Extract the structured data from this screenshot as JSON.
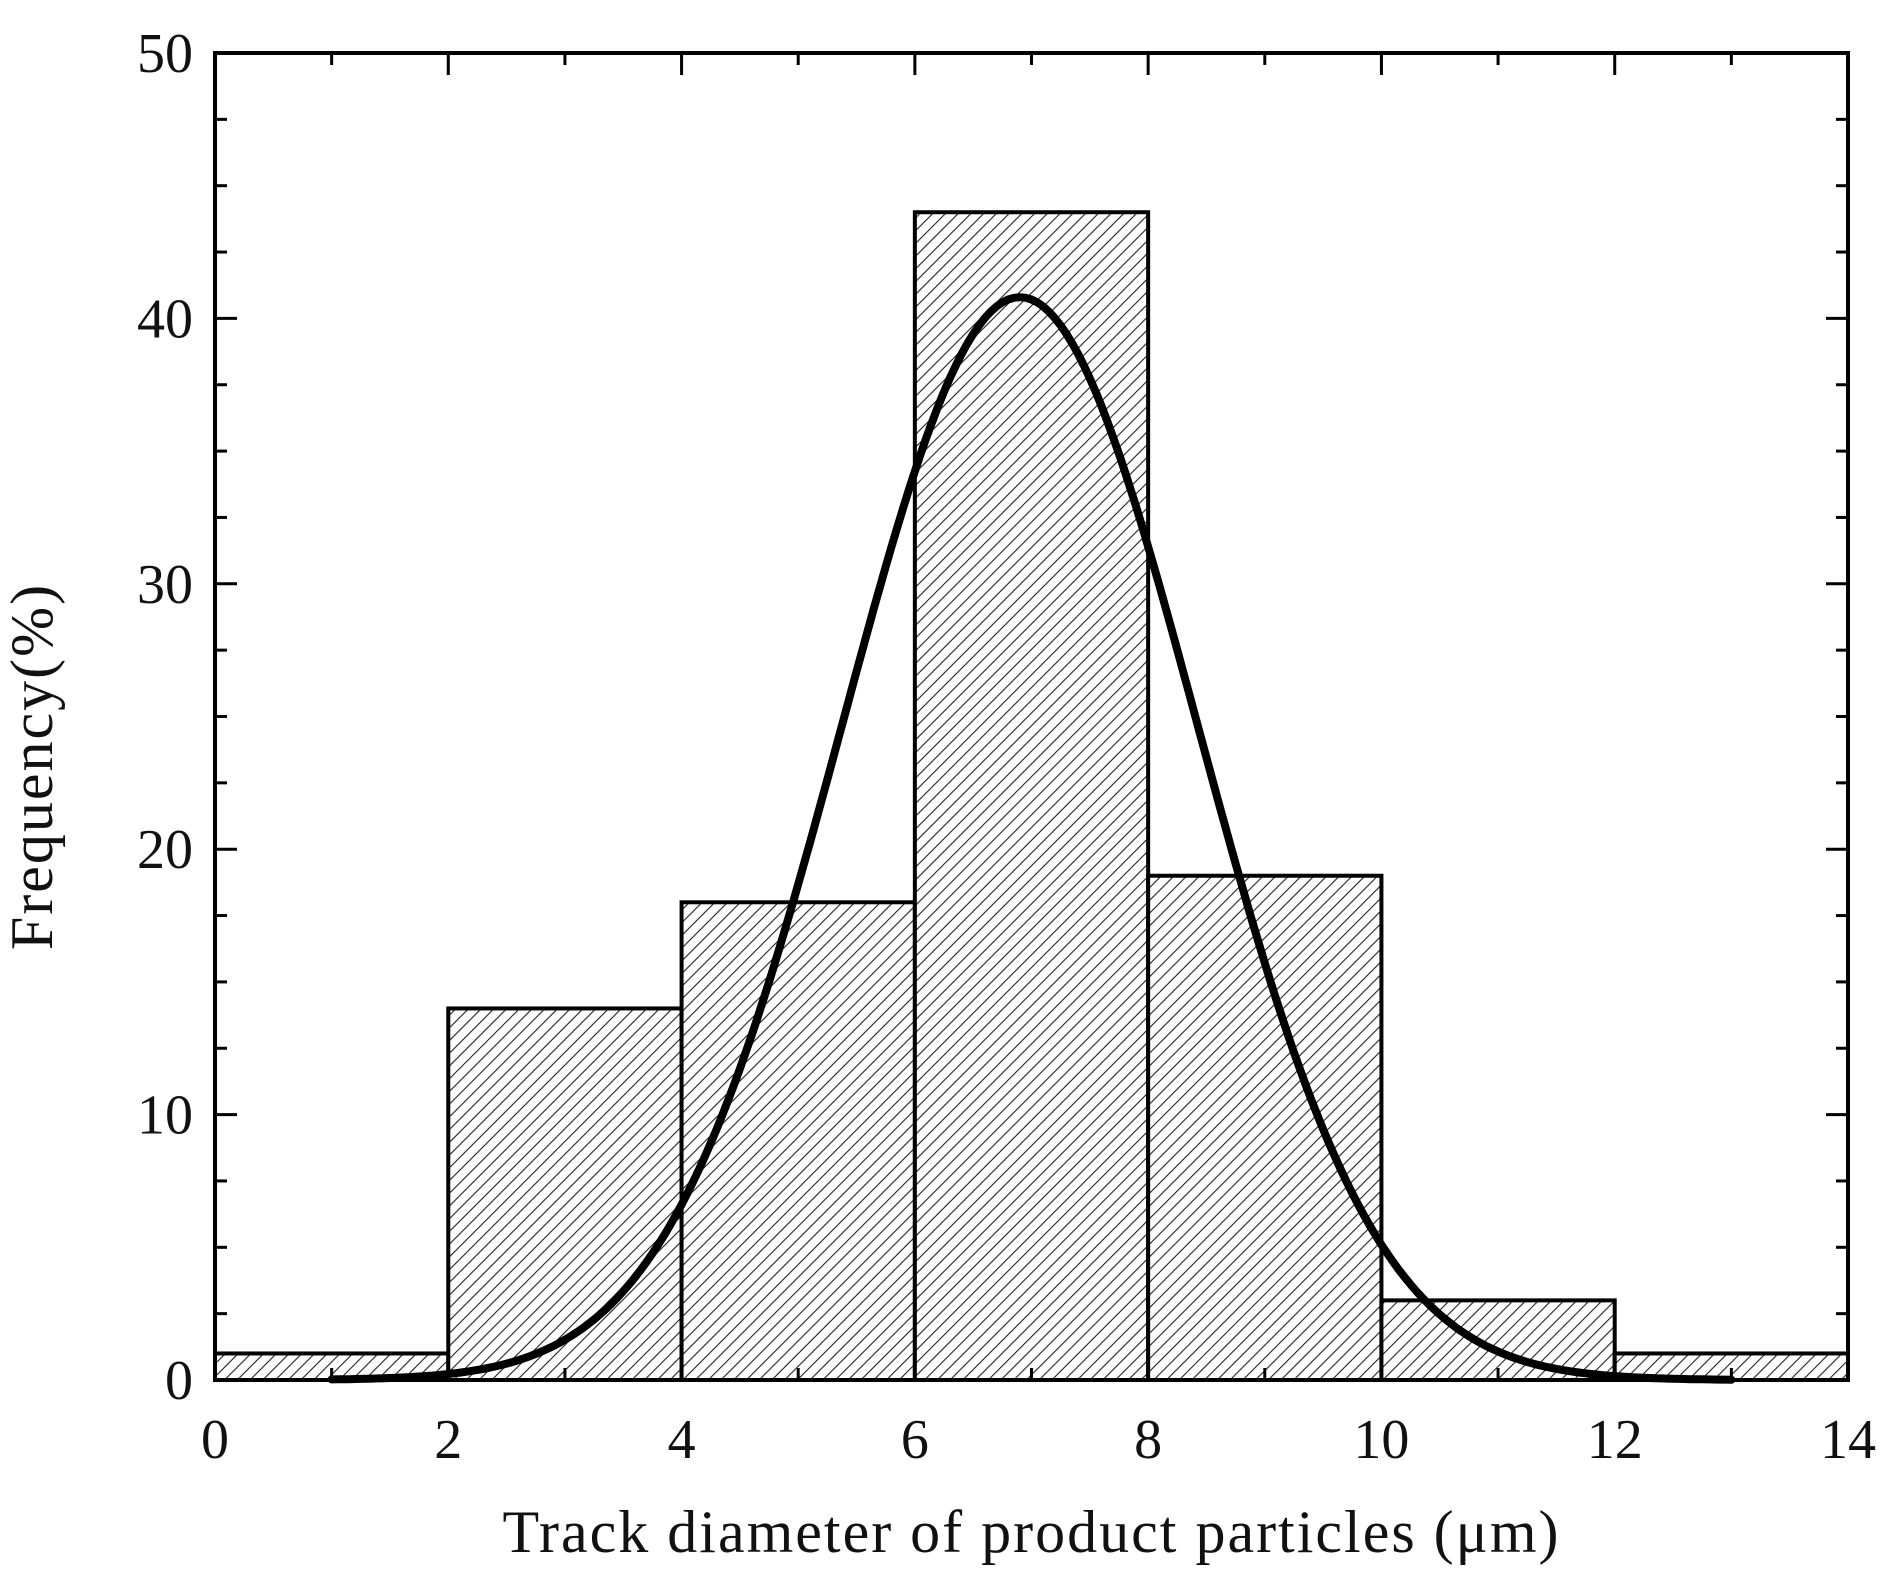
{
  "chart_data": {
    "type": "bar",
    "subtype": "histogram-with-fit-curve",
    "title": "",
    "xlabel": "Track diameter of product particles (μm)",
    "ylabel": "Frequency(%)",
    "xlim": [
      0,
      14
    ],
    "ylim": [
      0,
      50
    ],
    "xticks": [
      0,
      2,
      4,
      6,
      8,
      10,
      12,
      14
    ],
    "yticks": [
      0,
      10,
      20,
      30,
      40,
      50
    ],
    "x_tick_labels": [
      "0",
      "2",
      "4",
      "6",
      "8",
      "10",
      "12",
      "14"
    ],
    "y_tick_labels": [
      "0",
      "10",
      "20",
      "30",
      "40",
      "50"
    ],
    "bins": [
      {
        "x0": 0,
        "x1": 2,
        "value": 1
      },
      {
        "x0": 2,
        "x1": 4,
        "value": 14
      },
      {
        "x0": 4,
        "x1": 6,
        "value": 18
      },
      {
        "x0": 6,
        "x1": 8,
        "value": 44
      },
      {
        "x0": 8,
        "x1": 10,
        "value": 19
      },
      {
        "x0": 10,
        "x1": 12,
        "value": 3
      },
      {
        "x0": 12,
        "x1": 14,
        "value": 1
      }
    ],
    "fit_curve": {
      "type": "gaussian",
      "amplitude": 40.8,
      "center": 6.9,
      "sigma": 1.52,
      "x_range": [
        1,
        13
      ]
    },
    "bar_fill": "hatched",
    "grid": false,
    "legend": "none",
    "colors": {
      "bar_stroke": "#000000",
      "hatch": "#222222",
      "curve": "#000000",
      "background": "#ffffff"
    }
  }
}
